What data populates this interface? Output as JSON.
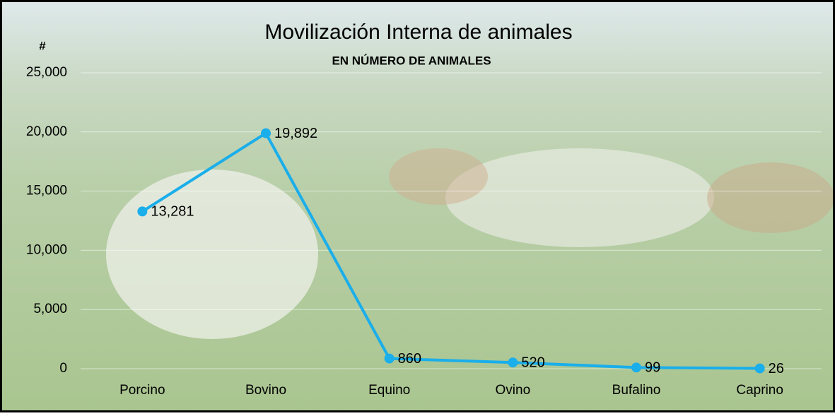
{
  "chart_data": {
    "type": "line",
    "title": "Movilización Interna de animales",
    "subtitle": "EN NÚMERO DE ANIMALES",
    "y_label": "#",
    "categories": [
      "Porcino",
      "Bovino",
      "Equino",
      "Ovino",
      "Bufalino",
      "Caprino"
    ],
    "values": [
      13281,
      19892,
      860,
      520,
      99,
      26
    ],
    "value_labels": [
      "13,281",
      "19,892",
      "860",
      "520",
      "99",
      "26"
    ],
    "color": "#1aaeea",
    "ylim": [
      0,
      25000
    ],
    "yticks": [
      0,
      {
        "value": 5000,
        "label": "5,000"
      },
      {
        "value": 10000,
        "label": "10,000"
      },
      {
        "value": 15000,
        "label": "15,000"
      },
      {
        "value": 20000,
        "label": "20,000"
      },
      {
        "value": 25000,
        "label": "25,000"
      }
    ],
    "grid": true
  }
}
